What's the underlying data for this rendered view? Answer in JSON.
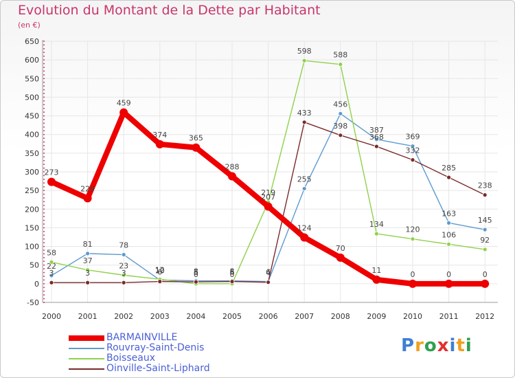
{
  "header": {
    "title": "Evolution du Montant de la Dette par Habitant",
    "unit": "(en €)"
  },
  "colors": {
    "title": "#c8356a",
    "grid": "#e6e6e6",
    "axis_marker": "#d0306a",
    "legend_text": "#4a5fd6"
  },
  "chart_data": {
    "type": "line",
    "title": "Evolution du Montant de la Dette par Habitant",
    "ylabel": "(en €)",
    "xlabel": "",
    "ylim": [
      -50,
      650
    ],
    "yticks": [
      650,
      600,
      550,
      500,
      450,
      400,
      350,
      300,
      250,
      200,
      150,
      100,
      50,
      0,
      -50
    ],
    "grid": true,
    "legend_position": "bottom-left",
    "categories": [
      "2000",
      "2001",
      "2002",
      "2003",
      "2004",
      "2005",
      "2006",
      "2007",
      "2008",
      "2009",
      "2010",
      "2011",
      "2012"
    ],
    "series": [
      {
        "name": "BARMAINVILLE",
        "color": "#ee0000",
        "emphasis": true,
        "values": [
          273,
          229,
          459,
          374,
          365,
          288,
          207,
          124,
          70,
          11,
          0,
          0,
          0
        ],
        "labels": [
          "273",
          "229",
          "459",
          "374",
          "365",
          "288",
          "207",
          "124",
          "70",
          "11",
          "0",
          "0",
          "0"
        ]
      },
      {
        "name": "Rouvray-Saint-Denis",
        "color": "#5d9bd0",
        "emphasis": false,
        "values": [
          22,
          81,
          78,
          10,
          8,
          8,
          6,
          255,
          456,
          387,
          369,
          163,
          145
        ],
        "labels": [
          "22",
          "81",
          "78",
          "10",
          "8",
          "8",
          "6",
          "255",
          "456",
          "387",
          "369",
          "163",
          "145"
        ]
      },
      {
        "name": "Boisseaux",
        "color": "#8fd14a",
        "emphasis": false,
        "values": [
          58,
          37,
          23,
          12,
          0,
          0,
          219,
          598,
          588,
          134,
          120,
          106,
          92
        ],
        "labels": [
          "58",
          "37",
          "23",
          "12",
          "0",
          "0",
          "219",
          "598",
          "588",
          "134",
          "120",
          "106",
          "92"
        ]
      },
      {
        "name": "Oinville-Saint-Liphard",
        "color": "#7a2a2a",
        "emphasis": false,
        "values": [
          3,
          3,
          3,
          6,
          5,
          6,
          4,
          433,
          398,
          368,
          332,
          285,
          238
        ],
        "labels": [
          "3",
          "3",
          "3",
          "6",
          "5",
          "6",
          "4",
          "433",
          "398",
          "368",
          "332",
          "285",
          "238"
        ]
      }
    ]
  },
  "logo": {
    "text": "Proxiti",
    "letter_colors": [
      "#3d7fd4",
      "#f0a020",
      "#2ea050",
      "#e23030",
      "#3d7fd4",
      "#f0a020",
      "#2ea050"
    ]
  }
}
